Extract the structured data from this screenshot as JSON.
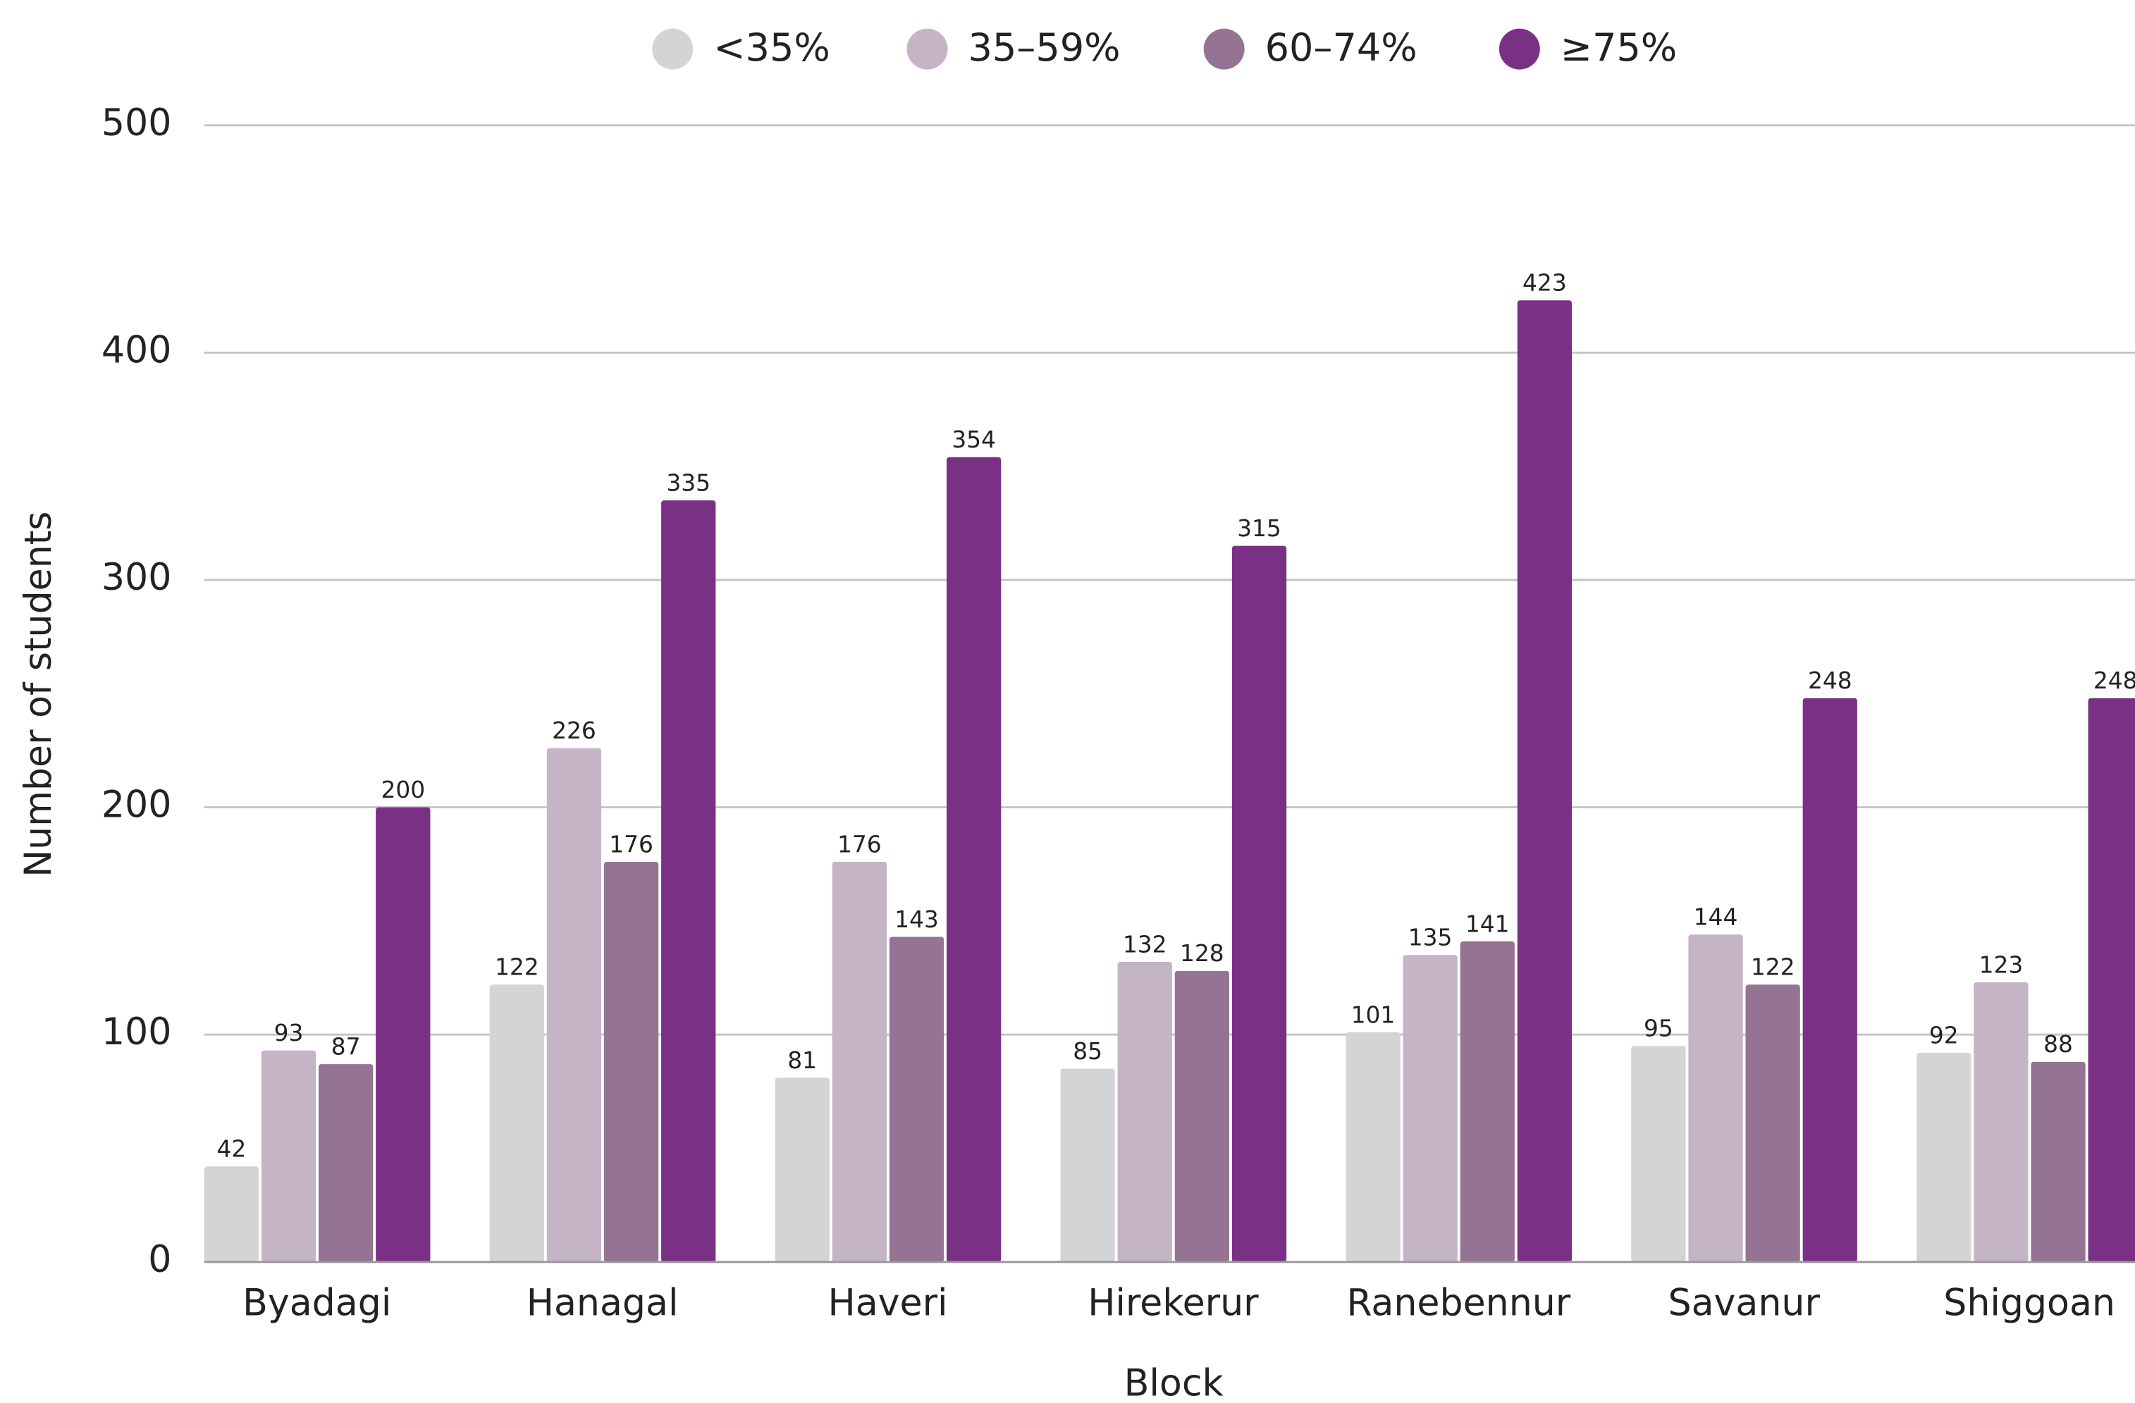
{
  "chart_data": {
    "type": "bar",
    "x_label": "Block",
    "y_label": "Number of students",
    "categories": [
      "Byadagi",
      "Hanagal",
      "Haveri",
      "Hirekerur",
      "Ranebennur",
      "Savanur",
      "Shiggoan"
    ],
    "series": [
      {
        "name": "<35%",
        "color": "#d3d4d6",
        "values": [
          42,
          122,
          81,
          85,
          101,
          95,
          92
        ]
      },
      {
        "name": "35–59%",
        "color": "#c5b3c6",
        "values": [
          93,
          226,
          176,
          132,
          135,
          144,
          123
        ]
      },
      {
        "name": "60–74%",
        "color": "#957393",
        "values": [
          87,
          176,
          143,
          128,
          141,
          122,
          88
        ]
      },
      {
        "name": "≥75%",
        "color": "#7a3185",
        "values": [
          200,
          335,
          354,
          315,
          423,
          248,
          248
        ]
      }
    ],
    "ylim": [
      0,
      500
    ],
    "yticks": [
      0,
      100,
      200,
      300,
      400,
      500
    ],
    "grid": true,
    "legend": "top"
  }
}
